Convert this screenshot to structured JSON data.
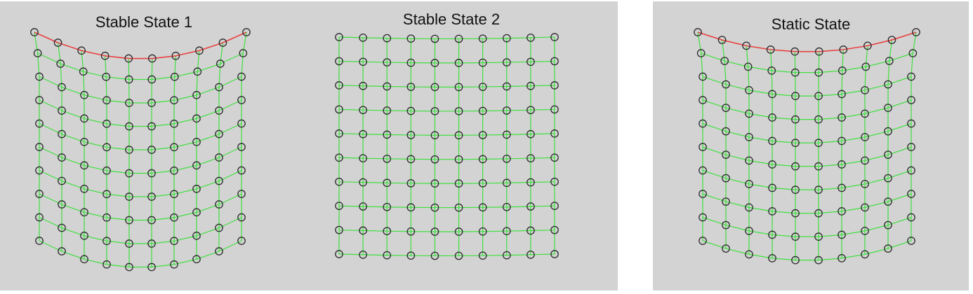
{
  "panels": [
    {
      "title": "Stable State 1"
    },
    {
      "title": "Stable State 2"
    },
    {
      "title": "Static State"
    }
  ],
  "colors": {
    "background": "#d3d3d3",
    "spring": "#3fe03f",
    "pinned_edge": "#e8413f",
    "node_stroke": "#2b2b2b"
  },
  "mesh": {
    "rows": 10,
    "cols": 10
  }
}
